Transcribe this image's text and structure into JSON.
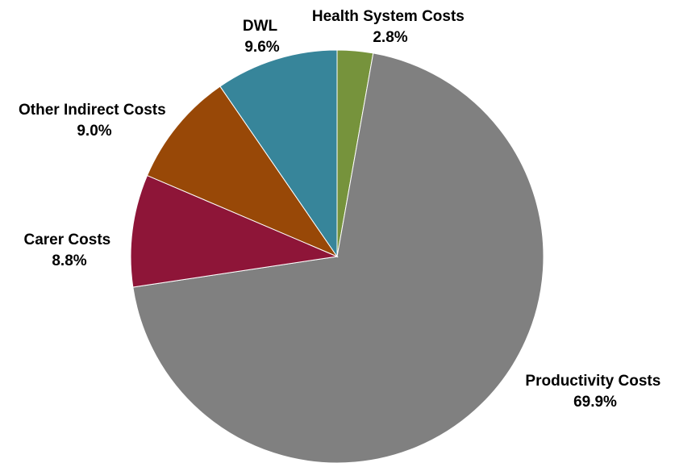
{
  "chart_data": {
    "type": "pie",
    "title": "",
    "start_angle_deg": 0,
    "direction": "clockwise",
    "slices": [
      {
        "name": "Health System Costs",
        "value": 2.8,
        "label": "2.8%",
        "color": "#76933C"
      },
      {
        "name": "Productivity Costs",
        "value": 69.9,
        "label": "69.9%",
        "color": "#808080"
      },
      {
        "name": "Carer Costs",
        "value": 8.8,
        "label": "8.8%",
        "color": "#8E1538"
      },
      {
        "name": "Other Indirect Costs",
        "value": 9.0,
        "label": "9.0%",
        "color": "#984807"
      },
      {
        "name": "DWL",
        "value": 9.6,
        "label": "9.6%",
        "color": "#37859A"
      }
    ]
  }
}
